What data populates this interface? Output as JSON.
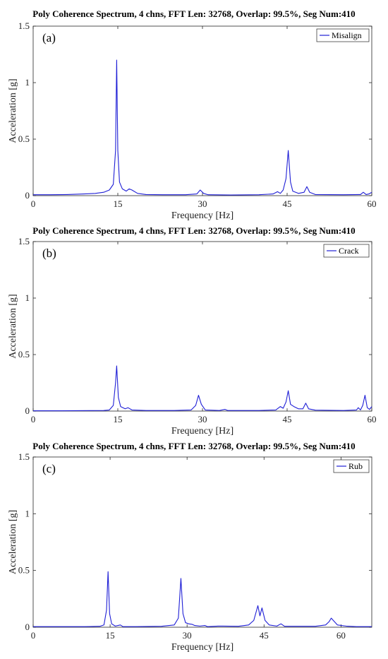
{
  "chart_data": [
    {
      "type": "line",
      "panel_label": "(a)",
      "title": "Poly Coherence Spectrum, 4 chns, FFT Len: 32768, Overlap: 99.5%, Seg Num:410",
      "xlabel": "Frequency [Hz]",
      "ylabel": "Acceleration [g]",
      "xlim": [
        0,
        60
      ],
      "ylim": [
        0,
        1.5
      ],
      "xticks": [
        0,
        15,
        30,
        45,
        60
      ],
      "yticks": [
        0,
        0.5,
        1,
        1.5
      ],
      "x_tick_labels": [
        "0",
        "15",
        "30",
        "45",
        "60"
      ],
      "y_tick_labels": [
        "0",
        "0.5",
        "1",
        "1.5"
      ],
      "grid": false,
      "legend_position": "top-right",
      "color": "#1f1fd6",
      "series": [
        {
          "name": "Misalign",
          "points": [
            [
              0,
              0.008
            ],
            [
              3,
              0.008
            ],
            [
              6,
              0.01
            ],
            [
              9,
              0.015
            ],
            [
              11,
              0.02
            ],
            [
              12.5,
              0.03
            ],
            [
              13.5,
              0.05
            ],
            [
              14.2,
              0.1
            ],
            [
              14.6,
              0.4
            ],
            [
              14.8,
              1.2
            ],
            [
              15.0,
              0.4
            ],
            [
              15.3,
              0.12
            ],
            [
              15.8,
              0.06
            ],
            [
              16.5,
              0.04
            ],
            [
              17,
              0.06
            ],
            [
              17.5,
              0.05
            ],
            [
              18.5,
              0.02
            ],
            [
              20,
              0.01
            ],
            [
              23,
              0.008
            ],
            [
              27,
              0.008
            ],
            [
              29,
              0.015
            ],
            [
              29.6,
              0.05
            ],
            [
              30.2,
              0.02
            ],
            [
              31,
              0.008
            ],
            [
              35,
              0.006
            ],
            [
              40,
              0.008
            ],
            [
              42.5,
              0.015
            ],
            [
              43.3,
              0.035
            ],
            [
              43.8,
              0.02
            ],
            [
              44.3,
              0.05
            ],
            [
              44.8,
              0.15
            ],
            [
              45.2,
              0.4
            ],
            [
              45.6,
              0.12
            ],
            [
              46,
              0.04
            ],
            [
              47,
              0.02
            ],
            [
              48,
              0.03
            ],
            [
              48.5,
              0.08
            ],
            [
              49,
              0.03
            ],
            [
              50,
              0.01
            ],
            [
              55,
              0.008
            ],
            [
              58,
              0.01
            ],
            [
              58.5,
              0.03
            ],
            [
              59,
              0.01
            ],
            [
              59.5,
              0.015
            ],
            [
              60,
              0.03
            ]
          ]
        }
      ]
    },
    {
      "type": "line",
      "panel_label": "(b)",
      "title": "Poly Coherence Spectrum, 4 chns, FFT Len: 32768, Overlap: 99.5%, Seg Num:410",
      "xlabel": "Frequency [Hz]",
      "ylabel": "Acceleration [g]",
      "xlim": [
        0,
        60
      ],
      "ylim": [
        0,
        1.5
      ],
      "xticks": [
        0,
        15,
        30,
        45,
        60
      ],
      "yticks": [
        0,
        0.5,
        1,
        1.5
      ],
      "x_tick_labels": [
        "0",
        "15",
        "30",
        "45",
        "60"
      ],
      "y_tick_labels": [
        "0",
        "0.5",
        "1",
        "1.5"
      ],
      "grid": false,
      "legend_position": "top-right",
      "color": "#1f1fd6",
      "series": [
        {
          "name": "Crack",
          "points": [
            [
              0,
              0.003
            ],
            [
              5,
              0.003
            ],
            [
              10,
              0.004
            ],
            [
              12.5,
              0.005
            ],
            [
              13.5,
              0.01
            ],
            [
              14.2,
              0.05
            ],
            [
              14.6,
              0.25
            ],
            [
              14.8,
              0.4
            ],
            [
              15.1,
              0.12
            ],
            [
              15.5,
              0.04
            ],
            [
              16.3,
              0.02
            ],
            [
              16.8,
              0.03
            ],
            [
              17.5,
              0.01
            ],
            [
              20,
              0.005
            ],
            [
              25,
              0.005
            ],
            [
              28,
              0.01
            ],
            [
              28.8,
              0.05
            ],
            [
              29.3,
              0.14
            ],
            [
              29.8,
              0.06
            ],
            [
              30.5,
              0.01
            ],
            [
              33,
              0.005
            ],
            [
              34,
              0.015
            ],
            [
              34.5,
              0.005
            ],
            [
              40,
              0.005
            ],
            [
              43,
              0.01
            ],
            [
              43.8,
              0.04
            ],
            [
              44.3,
              0.025
            ],
            [
              44.8,
              0.08
            ],
            [
              45.2,
              0.18
            ],
            [
              45.6,
              0.06
            ],
            [
              46.2,
              0.04
            ],
            [
              47,
              0.02
            ],
            [
              47.8,
              0.02
            ],
            [
              48.3,
              0.07
            ],
            [
              48.8,
              0.02
            ],
            [
              50,
              0.008
            ],
            [
              55,
              0.005
            ],
            [
              57.3,
              0.01
            ],
            [
              57.6,
              0.03
            ],
            [
              58,
              0.01
            ],
            [
              58.4,
              0.05
            ],
            [
              58.8,
              0.14
            ],
            [
              59.2,
              0.03
            ],
            [
              59.6,
              0.015
            ],
            [
              60,
              0.04
            ]
          ]
        }
      ]
    },
    {
      "type": "line",
      "panel_label": "(c)",
      "title": "Poly Coherence Spectrum, 4 chns, FFT Len: 32768, Overlap: 99.5%, Seg Num:410",
      "xlabel": "Frequency [Hz]",
      "ylabel": "Acceleration [g]",
      "xlim": [
        0,
        66
      ],
      "ylim": [
        0,
        1.5
      ],
      "xticks": [
        0,
        15,
        30,
        45,
        60
      ],
      "yticks": [
        0,
        0.5,
        1,
        1.5
      ],
      "x_tick_labels": [
        "0",
        "15",
        "30",
        "45",
        "60"
      ],
      "y_tick_labels": [
        "0",
        "0.5",
        "1",
        "1.5"
      ],
      "grid": false,
      "legend_position": "top-right",
      "color": "#1f1fd6",
      "series": [
        {
          "name": "Rub",
          "points": [
            [
              0,
              0.005
            ],
            [
              5,
              0.005
            ],
            [
              10,
              0.005
            ],
            [
              13,
              0.008
            ],
            [
              13.8,
              0.02
            ],
            [
              14.3,
              0.15
            ],
            [
              14.6,
              0.49
            ],
            [
              14.9,
              0.12
            ],
            [
              15.3,
              0.03
            ],
            [
              16,
              0.01
            ],
            [
              17,
              0.02
            ],
            [
              17.5,
              0.005
            ],
            [
              20,
              0.005
            ],
            [
              25,
              0.008
            ],
            [
              27.5,
              0.02
            ],
            [
              28.3,
              0.08
            ],
            [
              28.8,
              0.43
            ],
            [
              29.2,
              0.12
            ],
            [
              29.7,
              0.04
            ],
            [
              30.3,
              0.03
            ],
            [
              31,
              0.025
            ],
            [
              31.5,
              0.015
            ],
            [
              32.5,
              0.01
            ],
            [
              33.5,
              0.015
            ],
            [
              34,
              0.005
            ],
            [
              36,
              0.01
            ],
            [
              37,
              0.01
            ],
            [
              40,
              0.008
            ],
            [
              42,
              0.02
            ],
            [
              43,
              0.06
            ],
            [
              43.8,
              0.19
            ],
            [
              44.2,
              0.1
            ],
            [
              44.6,
              0.17
            ],
            [
              45.2,
              0.06
            ],
            [
              46,
              0.02
            ],
            [
              47.5,
              0.01
            ],
            [
              48.3,
              0.03
            ],
            [
              49,
              0.008
            ],
            [
              52,
              0.008
            ],
            [
              55,
              0.008
            ],
            [
              57,
              0.02
            ],
            [
              57.7,
              0.05
            ],
            [
              58.1,
              0.08
            ],
            [
              58.5,
              0.06
            ],
            [
              59.3,
              0.02
            ],
            [
              61,
              0.01
            ],
            [
              63,
              0.005
            ],
            [
              66,
              0.005
            ]
          ]
        }
      ]
    }
  ]
}
